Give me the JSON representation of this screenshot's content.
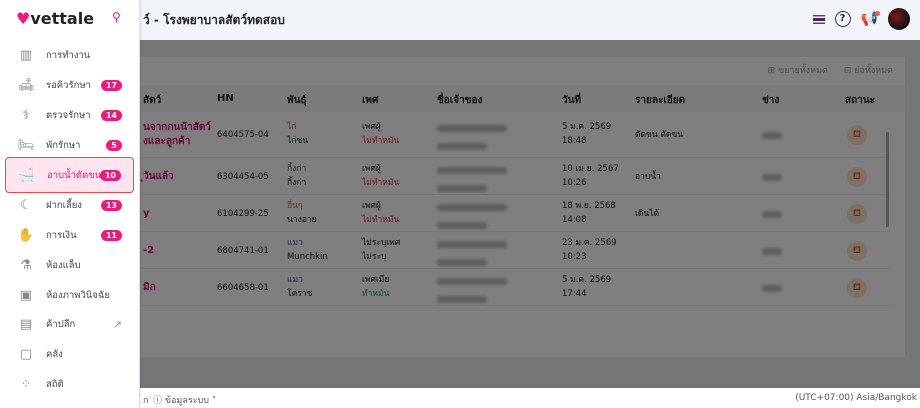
{
  "header": {
    "title": "ว์ - โรงพยาบาลสัตว์ทดสอบ",
    "icons": [
      "thai-flag-icon",
      "help-icon",
      "announcement-icon",
      "avatar"
    ]
  },
  "sidebar": {
    "logo": "vettale",
    "items": [
      {
        "label": "การทำงาน",
        "icon": "board-icon",
        "badge": null
      },
      {
        "label": "รอคิวรักษา",
        "icon": "sofa-icon",
        "badge": "17"
      },
      {
        "label": "ตรวจรักษา",
        "icon": "stethoscope-icon",
        "badge": "14"
      },
      {
        "label": "พักรักษา",
        "icon": "bed-icon",
        "badge": "5"
      },
      {
        "label": "อาบน้ำตัดขน",
        "icon": "bathtub-icon",
        "badge": "10",
        "active": true
      },
      {
        "label": "ฝากเลี้ยง",
        "icon": "moon-icon",
        "badge": "13"
      },
      {
        "label": "การเงิน",
        "icon": "money-hand-icon",
        "badge": "11"
      },
      {
        "label": "ห้องแล็บ",
        "icon": "test-tube-icon",
        "badge": null
      },
      {
        "label": "ห้องภาพวินิจฉัย",
        "icon": "xray-icon",
        "badge": null
      },
      {
        "label": "ค้าปลีก",
        "icon": "cash-register-icon",
        "badge": null,
        "external": true
      },
      {
        "label": "คลัง",
        "icon": "box-icon",
        "badge": null
      },
      {
        "label": "สถิติ",
        "icon": "grid-icon",
        "badge": null
      }
    ],
    "accent": "#f0187a"
  },
  "toolbar": {
    "expand_all": "ขยายทั้งหมด",
    "collapse_all": "ย่อทั้งหมด"
  },
  "table": {
    "headers": [
      "สัตว์",
      "HN",
      "พันธุ์",
      "เพศ",
      "ชื่อเจ้าของ",
      "วันที่",
      "รายละเอียด",
      "ช่าง",
      "สถานะ"
    ],
    "rows": [
      {
        "name": [
          "นจากกนน้าสัตว์",
          "งและลูกค้า"
        ],
        "hn": "6404575-04",
        "species": "ไก่",
        "breed": "ไก่ชน",
        "sex": "เพศผู้",
        "neuter": "ไม่ทำหมัน",
        "date": "5 ม.ค. 2569",
        "time": "18:48",
        "detail": "ตัดขน ตัดขน"
      },
      {
        "name": [
          "ุวันแล้ว"
        ],
        "hn": "6304454-05",
        "species": "กิ้งก่า",
        "breed": "กิ้งก่า",
        "sex": "เพศผู้",
        "neuter": "ไม่ทำหมัน",
        "date": "10 เม.ย. 2567",
        "time": "10:26",
        "detail": "อาบน้ำ"
      },
      {
        "name": [
          "y"
        ],
        "hn": "6104299-25",
        "species": "อื่นๆ",
        "breed": "นางอาย",
        "sex": "เพศผู้",
        "neuter": "ไม่ทำหมัน",
        "date": "18 พ.ย. 2568",
        "time": "14:08",
        "detail": "เดินได้"
      },
      {
        "name": [
          "-2"
        ],
        "hn": "6804741-01",
        "species": "แมว",
        "breed": "Munchkin",
        "sex": "ไม่ระบุเพศ",
        "neuter": "ไม่ระบุ",
        "date": "23 ม.ค. 2569",
        "time": "10:23",
        "detail": ""
      },
      {
        "name": [
          "มิก"
        ],
        "hn": "6604658-01",
        "species": "แมว",
        "breed": "โคราช",
        "sex": "เพศเมีย",
        "neuter": "ทำหมัน",
        "date": "5 ม.ค. 2569",
        "time": "17:44",
        "detail": ""
      }
    ]
  },
  "footer": {
    "left_fragment": "ก",
    "system_info": "ข้อมูลระบบ",
    "timezone": "(UTC+07:00) Asia/Bangkok"
  }
}
